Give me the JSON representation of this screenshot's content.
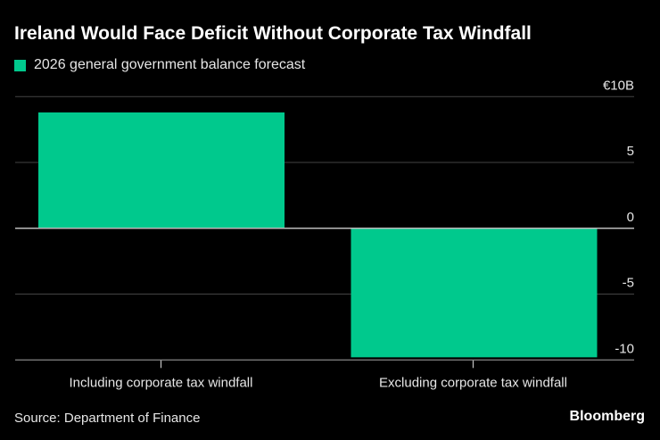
{
  "chart_data": {
    "type": "bar",
    "title": "Ireland Would Face Deficit Without Corporate Tax Windfall",
    "legend": [
      "2026 general government balance forecast"
    ],
    "legend_position": "top-left",
    "categories": [
      "Including corporate tax windfall",
      "Excluding corporate tax windfall"
    ],
    "series": [
      {
        "name": "2026 general government balance forecast",
        "values": [
          8.8,
          -9.8
        ]
      }
    ],
    "yticks": [
      10,
      5,
      0,
      -5,
      -10
    ],
    "ytick_labels": [
      "€10B",
      "5",
      "0",
      "-5",
      "-10"
    ],
    "ylim": [
      -10,
      10
    ],
    "xlabel": "",
    "ylabel": "",
    "grid": true,
    "source": "Source: Department of Finance",
    "brand": "Bloomberg",
    "colors": {
      "bar": "#00c98d",
      "grid": "#444444",
      "zero": "#bbbbbb",
      "background": "#000000"
    }
  }
}
